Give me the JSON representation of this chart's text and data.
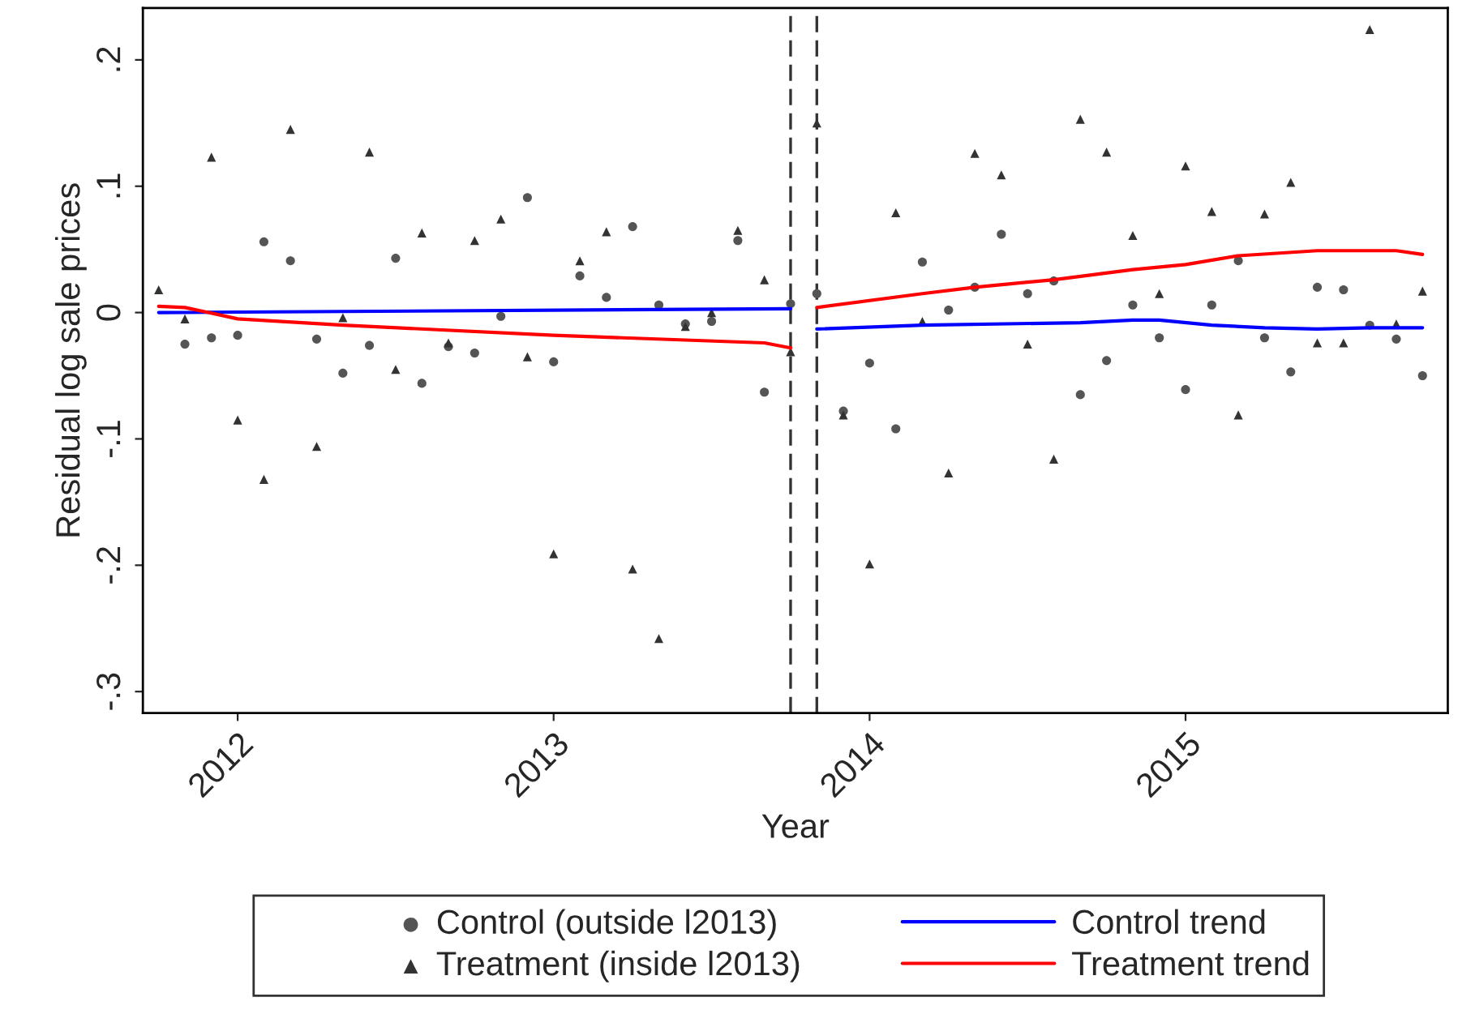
{
  "chart_data": {
    "type": "scatter",
    "xlabel": "Year",
    "ylabel": "Residual log sale prices",
    "x": [
      2011.75,
      2011.833,
      2011.917,
      2012,
      2012.083,
      2012.167,
      2012.25,
      2012.333,
      2012.417,
      2012.5,
      2012.583,
      2012.667,
      2012.75,
      2012.833,
      2012.917,
      2013,
      2013.083,
      2013.167,
      2013.25,
      2013.333,
      2013.417,
      2013.5,
      2013.583,
      2013.667,
      2013.75,
      2013.833,
      2013.917,
      2014,
      2014.083,
      2014.167,
      2014.25,
      2014.333,
      2014.417,
      2014.5,
      2014.583,
      2014.667,
      2014.75,
      2014.833,
      2014.917,
      2015,
      2015.083,
      2015.167,
      2015.25,
      2015.333,
      2015.417,
      2015.5,
      2015.583,
      2015.667,
      2015.75
    ],
    "series": [
      {
        "name": "Control (outside l2013)",
        "marker": "circle",
        "color": "#555555",
        "values": [
          null,
          -0.025,
          -0.02,
          -0.018,
          0.056,
          0.041,
          -0.021,
          -0.048,
          -0.026,
          0.043,
          -0.056,
          -0.027,
          -0.032,
          -0.003,
          0.091,
          -0.039,
          0.029,
          0.012,
          0.068,
          0.006,
          -0.009,
          -0.007,
          0.057,
          -0.063,
          0.007,
          0.015,
          -0.078,
          -0.04,
          -0.092,
          0.04,
          0.002,
          0.02,
          0.062,
          0.015,
          0.025,
          -0.065,
          -0.038,
          0.006,
          -0.02,
          -0.061,
          0.006,
          0.041,
          -0.02,
          -0.047,
          0.02,
          0.018,
          -0.01,
          -0.021,
          -0.05
        ]
      },
      {
        "name": "Treatment (inside l2013)",
        "marker": "triangle",
        "color": "#333333",
        "values": [
          0.018,
          -0.005,
          0.123,
          -0.085,
          -0.132,
          0.145,
          -0.106,
          -0.004,
          0.127,
          -0.045,
          0.063,
          -0.024,
          0.057,
          0.074,
          -0.035,
          -0.191,
          0.041,
          0.064,
          -0.203,
          -0.258,
          -0.011,
          0.0,
          0.065,
          0.026,
          -0.031,
          0.15,
          -0.081,
          -0.199,
          0.079,
          -0.007,
          -0.127,
          0.126,
          0.109,
          -0.025,
          -0.116,
          0.153,
          0.127,
          0.061,
          0.015,
          0.116,
          0.08,
          -0.081,
          0.078,
          0.103,
          -0.024,
          -0.024,
          0.224,
          -0.009,
          0.017
        ]
      },
      {
        "name": "Control trend",
        "type": "line",
        "marker": "none",
        "line_style": "solid",
        "color": "#0000ff",
        "x": [
          2011.75,
          2013.75
        ],
        "values": [
          0.0,
          0.003
        ]
      },
      {
        "type": "line",
        "marker": "none",
        "line_style": "solid",
        "color": "#0000ff",
        "x": [
          2013.833,
          2014.167,
          2014.667,
          2014.833,
          2014.917,
          2015.083,
          2015.25,
          2015.417,
          2015.583,
          2015.75
        ],
        "values": [
          -0.013,
          -0.01,
          -0.008,
          -0.006,
          -0.006,
          -0.01,
          -0.012,
          -0.013,
          -0.012,
          -0.012
        ]
      },
      {
        "name": "Treatment trend",
        "type": "line",
        "marker": "none",
        "line_style": "solid",
        "color": "#ff0000",
        "x": [
          2011.75,
          2011.833,
          2012,
          2012.333,
          2013,
          2013.667,
          2013.75
        ],
        "values": [
          0.005,
          0.004,
          -0.005,
          -0.01,
          -0.018,
          -0.024,
          -0.028
        ]
      },
      {
        "type": "line",
        "marker": "none",
        "line_style": "solid",
        "color": "#ff0000",
        "x": [
          2013.833,
          2014.167,
          2014.333,
          2014.583,
          2014.833,
          2015,
          2015.167,
          2015.417,
          2015.583,
          2015.667,
          2015.75
        ],
        "values": [
          0.004,
          0.015,
          0.02,
          0.026,
          0.034,
          0.038,
          0.045,
          0.049,
          0.049,
          0.049,
          0.046
        ]
      }
    ],
    "ref_lines": [
      {
        "axis": "x",
        "value": 2013.75,
        "color": "#333333",
        "line_style": "dashed"
      },
      {
        "axis": "x",
        "value": 2013.833,
        "color": "#333333",
        "line_style": "dashed"
      }
    ],
    "xlim": [
      2011.7,
      2015.83
    ],
    "ylim": [
      -0.317,
      0.241
    ],
    "xticks": [
      2012,
      2013,
      2014,
      2015
    ],
    "yticks": [
      {
        "value": 0.2,
        "label": ".2"
      },
      {
        "value": 0.1,
        "label": ".1"
      },
      0,
      {
        "value": -0.1,
        "label": "-.1"
      },
      {
        "value": -0.2,
        "label": "-.2"
      },
      {
        "value": -0.3,
        "label": "-.3"
      }
    ],
    "grid": false,
    "legend": "bottom"
  }
}
